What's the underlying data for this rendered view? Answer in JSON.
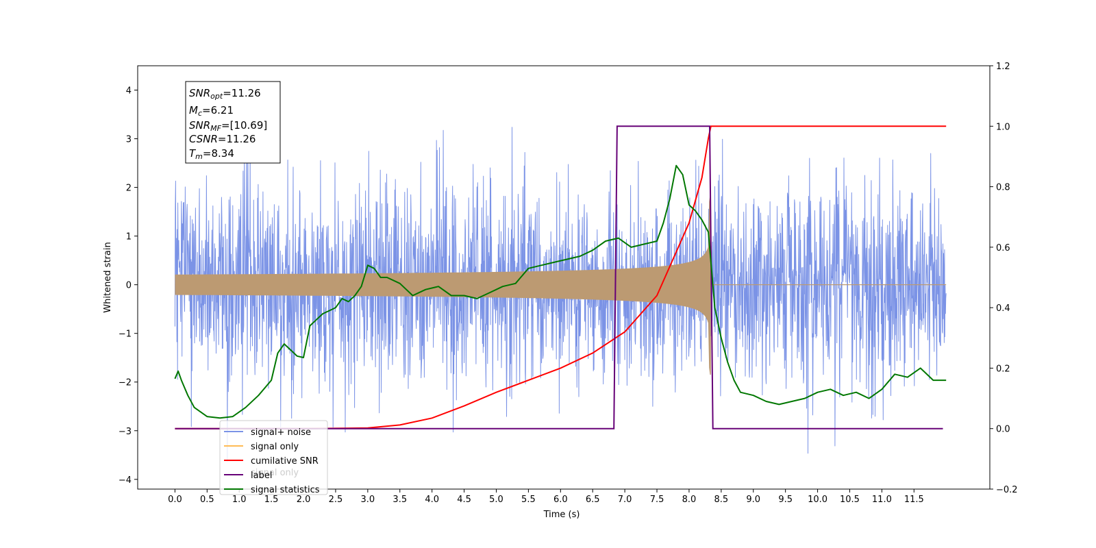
{
  "chart_data": {
    "type": "line",
    "xlabel": "Time (s)",
    "ylabel": "Whitened strain",
    "xlim": [
      -0.58,
      12.68
    ],
    "ylim": [
      -4.2,
      4.5
    ],
    "y2lim": [
      -0.2,
      1.2
    ],
    "x_ticks": [
      "0.0",
      "0.5",
      "1.0",
      "1.5",
      "2.0",
      "2.5",
      "3.0",
      "3.5",
      "4.0",
      "4.5",
      "5.0",
      "5.5",
      "6.0",
      "6.5",
      "7.0",
      "7.5",
      "8.0",
      "8.5",
      "9.0",
      "9.5",
      "10.0",
      "10.5",
      "11.0",
      "11.5"
    ],
    "y_ticks": [
      "4",
      "3",
      "2",
      "1",
      "0",
      "−1",
      "−2",
      "−3",
      "−4"
    ],
    "y2_ticks": [
      "1.2",
      "1.0",
      "0.8",
      "0.6",
      "0.4",
      "0.2",
      "0.0",
      "−0.2"
    ],
    "annotation": {
      "snr_opt_label": "SNR",
      "snr_opt_sub": "opt",
      "snr_opt_value": "=11.26",
      "mc_label": "M",
      "mc_sub": "c",
      "mc_value": "=6.21",
      "snr_mf_label": "SNR",
      "snr_mf_sub": "MF",
      "snr_mf_value": "=[10.69]",
      "csnr_label": "CSNR",
      "csnr_value": "=11.26",
      "tm_label": "T",
      "tm_sub": "m",
      "tm_value": "=8.34"
    },
    "legend_position": "lower-left",
    "colors": {
      "signal_noise": "#7b93e6",
      "signal_only": "#ffbb55",
      "signal_overlap": "#bc9a72",
      "cumulative_snr": "#ff0000",
      "label": "#660077",
      "signal_statistics": "#007700"
    },
    "series": [
      {
        "name": "signal+ noise",
        "axis": "left",
        "generated": true,
        "x_range": [
          0,
          12
        ],
        "sigma": 1.0,
        "spike_max": 4.0,
        "spike_min": -3.85
      },
      {
        "name": "signal only",
        "axis": "left",
        "generated": true,
        "x_range": [
          0,
          12
        ],
        "chirp_peak_time": 8.34,
        "peak_amplitude": 1.85
      },
      {
        "name": "cumilative SNR",
        "axis": "right",
        "x": [
          0,
          1,
          2,
          3,
          3.5,
          4,
          4.5,
          5,
          5.5,
          6,
          6.5,
          7,
          7.5,
          8,
          8.2,
          8.3,
          8.34,
          8.4,
          9,
          10,
          11,
          12
        ],
        "y": [
          0,
          0,
          0,
          0.002,
          0.012,
          0.035,
          0.075,
          0.12,
          0.16,
          0.2,
          0.25,
          0.32,
          0.44,
          0.68,
          0.83,
          0.96,
          1.0,
          1.0,
          1.0,
          1.0,
          1.0,
          1.0
        ]
      },
      {
        "name": "label",
        "axis": "right",
        "x": [
          0,
          6.83,
          6.88,
          8.32,
          8.37,
          11.95
        ],
        "y": [
          0,
          0,
          1,
          1,
          0,
          0
        ]
      },
      {
        "name": "signal statistics",
        "axis": "right",
        "x": [
          0,
          0.05,
          0.1,
          0.2,
          0.3,
          0.5,
          0.7,
          0.9,
          1.1,
          1.3,
          1.5,
          1.6,
          1.7,
          1.8,
          1.9,
          2.0,
          2.1,
          2.2,
          2.3,
          2.4,
          2.5,
          2.6,
          2.7,
          2.8,
          2.9,
          3.0,
          3.1,
          3.2,
          3.3,
          3.5,
          3.7,
          3.9,
          4.1,
          4.3,
          4.5,
          4.7,
          4.9,
          5.1,
          5.3,
          5.5,
          5.7,
          5.9,
          6.1,
          6.3,
          6.5,
          6.7,
          6.9,
          7.1,
          7.3,
          7.5,
          7.6,
          7.7,
          7.8,
          7.9,
          8.0,
          8.1,
          8.2,
          8.3,
          8.4,
          8.5,
          8.6,
          8.7,
          8.8,
          9.0,
          9.2,
          9.4,
          9.6,
          9.8,
          10.0,
          10.2,
          10.4,
          10.6,
          10.8,
          11.0,
          11.2,
          11.4,
          11.6,
          11.8,
          12.0
        ],
        "y": [
          0.165,
          0.19,
          0.16,
          0.11,
          0.07,
          0.04,
          0.035,
          0.04,
          0.07,
          0.11,
          0.16,
          0.25,
          0.28,
          0.26,
          0.24,
          0.235,
          0.34,
          0.36,
          0.38,
          0.39,
          0.4,
          0.43,
          0.42,
          0.44,
          0.47,
          0.54,
          0.53,
          0.5,
          0.5,
          0.48,
          0.44,
          0.46,
          0.47,
          0.44,
          0.44,
          0.43,
          0.45,
          0.47,
          0.48,
          0.53,
          0.54,
          0.55,
          0.56,
          0.57,
          0.59,
          0.62,
          0.63,
          0.6,
          0.61,
          0.62,
          0.68,
          0.76,
          0.87,
          0.84,
          0.74,
          0.72,
          0.69,
          0.65,
          0.4,
          0.3,
          0.22,
          0.16,
          0.12,
          0.11,
          0.09,
          0.08,
          0.09,
          0.1,
          0.12,
          0.13,
          0.11,
          0.12,
          0.1,
          0.13,
          0.18,
          0.17,
          0.2,
          0.16,
          0.16
        ]
      }
    ],
    "legend": [
      {
        "label": "signal+ noise",
        "key": "signal_noise"
      },
      {
        "label": "signal only",
        "key": "signal_only"
      },
      {
        "label": "cumilative SNR",
        "key": "cumulative_snr"
      },
      {
        "label": "label",
        "key": "label"
      },
      {
        "label": "signal statistics",
        "key": "signal_statistics"
      }
    ],
    "legend_overlap_text": "signal only"
  }
}
